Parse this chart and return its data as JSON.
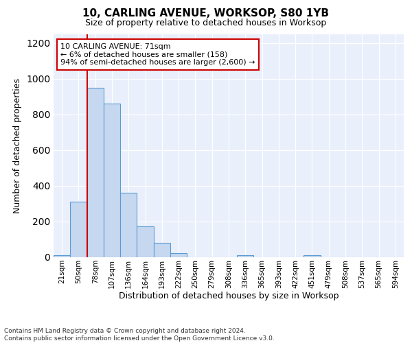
{
  "title1": "10, CARLING AVENUE, WORKSOP, S80 1YB",
  "title2": "Size of property relative to detached houses in Worksop",
  "xlabel": "Distribution of detached houses by size in Worksop",
  "ylabel": "Number of detached properties",
  "footer": "Contains HM Land Registry data © Crown copyright and database right 2024.\nContains public sector information licensed under the Open Government Licence v3.0.",
  "bin_labels": [
    "21sqm",
    "50sqm",
    "78sqm",
    "107sqm",
    "136sqm",
    "164sqm",
    "193sqm",
    "222sqm",
    "250sqm",
    "279sqm",
    "308sqm",
    "336sqm",
    "365sqm",
    "393sqm",
    "422sqm",
    "451sqm",
    "479sqm",
    "508sqm",
    "537sqm",
    "565sqm",
    "594sqm"
  ],
  "bar_heights": [
    12,
    310,
    950,
    860,
    360,
    175,
    80,
    25,
    0,
    0,
    0,
    12,
    0,
    0,
    0,
    12,
    0,
    0,
    0,
    0,
    0
  ],
  "bar_color": "#c5d8f0",
  "bar_edge_color": "#5b9bd5",
  "vline_x_idx": 2,
  "vline_color": "#cc0000",
  "annotation_text": "10 CARLING AVENUE: 71sqm\n← 6% of detached houses are smaller (158)\n94% of semi-detached houses are larger (2,600) →",
  "annotation_box_color": "#ffffff",
  "annotation_box_edge": "#cc0000",
  "ylim": [
    0,
    1250
  ],
  "yticks": [
    0,
    200,
    400,
    600,
    800,
    1000,
    1200
  ],
  "plot_bg": "#eaf0fb",
  "title1_fontsize": 11,
  "title2_fontsize": 9,
  "ylabel_fontsize": 9,
  "xlabel_fontsize": 9,
  "tick_fontsize": 7.5,
  "footer_fontsize": 6.5
}
